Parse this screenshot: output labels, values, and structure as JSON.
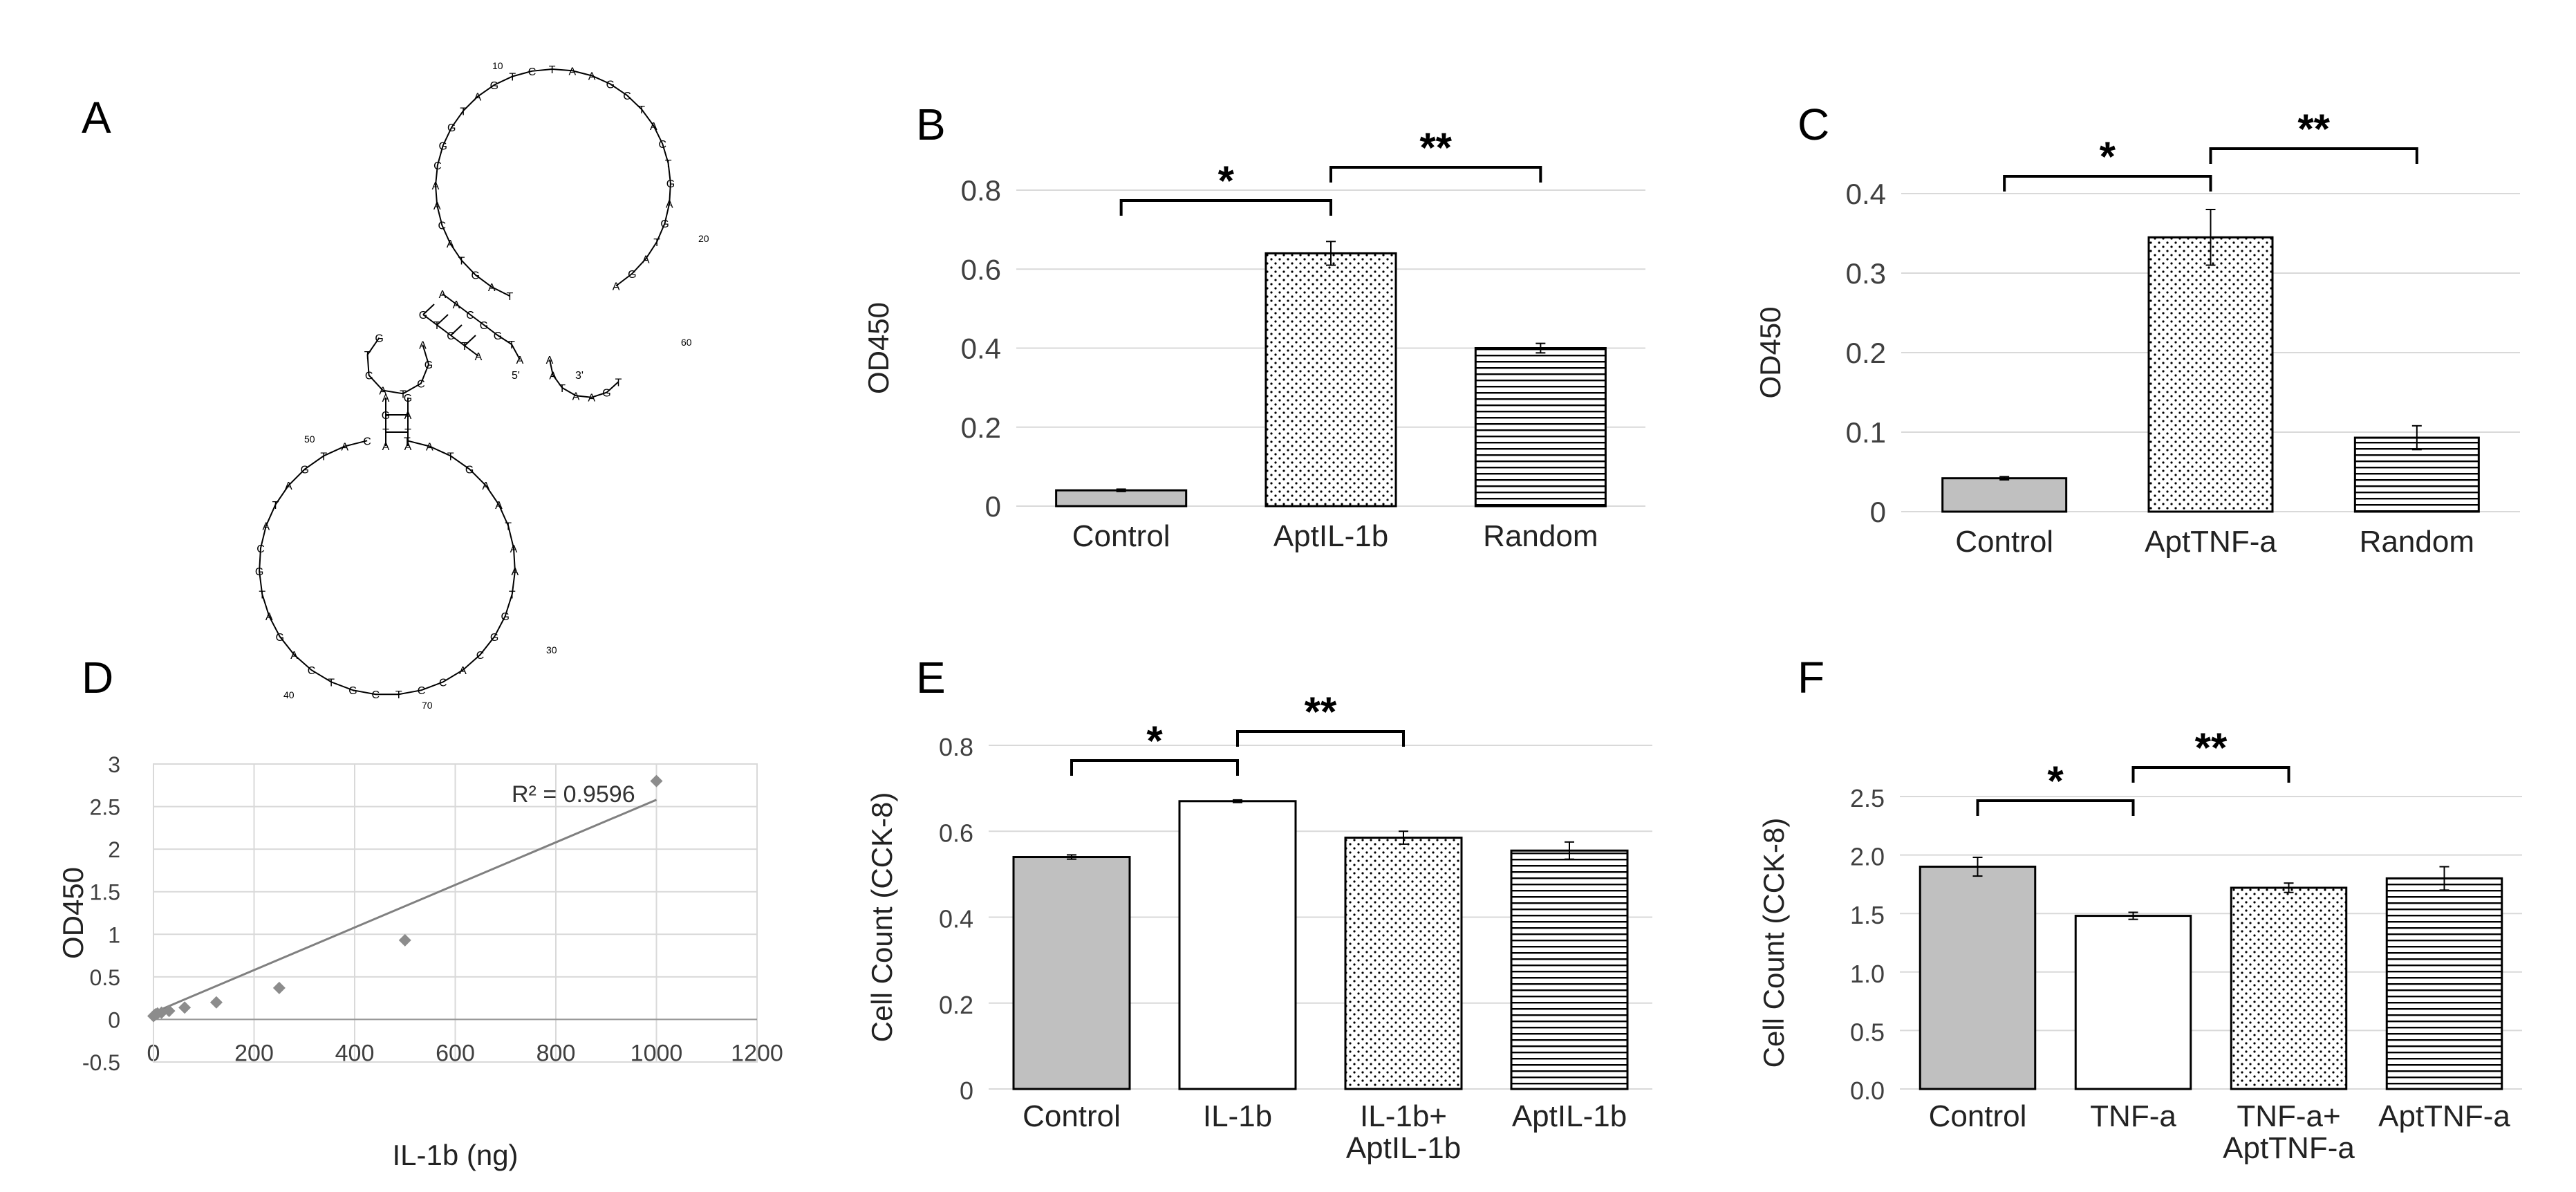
{
  "panel_labels": {
    "A": "A",
    "B": "B",
    "C": "C",
    "D": "D",
    "E": "E",
    "F": "F"
  },
  "colors": {
    "control_fill": "#c0c0c0",
    "bar_stroke": "#000000",
    "grid": "#d9d9d9",
    "axis_text": "#404040",
    "point": "#8c8c8c",
    "trend": "#808080"
  },
  "chart_data": [
    {
      "panel": "A",
      "type": "other",
      "description_kind": "aptamer secondary structure",
      "end_labels": [
        "5'",
        "3'"
      ],
      "position_labels": [
        "10",
        "20",
        "30",
        "40",
        "50",
        "60",
        "70"
      ],
      "nucleotides": [
        "T",
        "A",
        "G",
        "T",
        "A",
        "C",
        "A",
        "A",
        "C",
        "G",
        "G",
        "T",
        "A",
        "G",
        "T",
        "C",
        "T",
        "A",
        "A",
        "G",
        "C",
        "T",
        "A",
        "C",
        "T",
        "G",
        "A",
        "G",
        "T",
        "A",
        "G",
        "A",
        "T",
        "A",
        "T",
        "G",
        "A",
        "A",
        "T",
        "A",
        "A",
        "T",
        "G",
        "G",
        "C",
        "A",
        "C",
        "C",
        "T",
        "C",
        "G",
        "T",
        "C",
        "A",
        "G",
        "A",
        "T",
        "G",
        "C",
        "A"
      ]
    },
    {
      "panel": "B",
      "type": "bar",
      "ylabel": "OD450",
      "ylim": [
        0,
        0.8
      ],
      "yticks": [
        "0",
        "0.2",
        "0.4",
        "0.6",
        "0.8"
      ],
      "categories": [
        "Control",
        "AptIL-1b",
        "Random"
      ],
      "values": [
        0.04,
        0.64,
        0.4
      ],
      "errors": [
        0.003,
        0.03,
        0.012
      ],
      "patterns": [
        "solid",
        "dots",
        "hlines"
      ],
      "brackets": [
        {
          "from": 0,
          "to": 1,
          "label": "*"
        },
        {
          "from": 1,
          "to": 2,
          "label": "**"
        }
      ]
    },
    {
      "panel": "C",
      "type": "bar",
      "ylabel": "OD450",
      "ylim": [
        0,
        0.4
      ],
      "yticks": [
        "0",
        "0.1",
        "0.2",
        "0.3",
        "0.4"
      ],
      "categories": [
        "Control",
        "AptTNF-a",
        "Random"
      ],
      "values": [
        0.042,
        0.345,
        0.093
      ],
      "errors": [
        0.002,
        0.035,
        0.015
      ],
      "patterns": [
        "solid",
        "dots",
        "hlines"
      ],
      "brackets": [
        {
          "from": 0,
          "to": 1,
          "label": "*"
        },
        {
          "from": 1,
          "to": 2,
          "label": "**"
        }
      ]
    },
    {
      "panel": "D",
      "type": "scatter",
      "xlabel": "IL-1b (ng)",
      "ylabel": "OD450",
      "xlim": [
        0,
        1200
      ],
      "ylim": [
        -0.5,
        3
      ],
      "xticks": [
        "0",
        "200",
        "400",
        "600",
        "800",
        "1000",
        "1200"
      ],
      "yticks": [
        "-0.5",
        "0",
        "0.5",
        "1",
        "1.5",
        "2",
        "2.5",
        "3"
      ],
      "x": [
        0,
        2,
        4,
        8,
        16,
        31,
        62,
        125,
        250,
        500,
        1000
      ],
      "y": [
        0.04,
        0.05,
        0.06,
        0.07,
        0.08,
        0.1,
        0.14,
        0.2,
        0.37,
        0.93,
        2.8
      ],
      "trendline": {
        "slope": 0.0025,
        "intercept": 0.08
      },
      "annotation": "R² = 0.9596"
    },
    {
      "panel": "E",
      "type": "bar",
      "ylabel": "Cell Count (CCK-8)",
      "ylim": [
        0,
        0.8
      ],
      "yticks": [
        "0",
        "0.2",
        "0.4",
        "0.6",
        "0.8"
      ],
      "categories": [
        [
          "Control"
        ],
        [
          "IL-1b"
        ],
        [
          "IL-1b+",
          "AptIL-1b"
        ],
        [
          "AptIL-1b"
        ]
      ],
      "values": [
        0.54,
        0.67,
        0.585,
        0.555
      ],
      "errors": [
        0.005,
        0.003,
        0.015,
        0.02
      ],
      "patterns": [
        "solid",
        "white",
        "dots",
        "hlines"
      ],
      "brackets": [
        {
          "from": 0,
          "to": 1,
          "label": "*"
        },
        {
          "from": 1,
          "to": 2,
          "label": "**"
        }
      ]
    },
    {
      "panel": "F",
      "type": "bar",
      "ylabel": "Cell Count (CCK-8)",
      "ylim": [
        0,
        2.5
      ],
      "yticks": [
        "0.0",
        "0.5",
        "1.0",
        "1.5",
        "2.0",
        "2.5"
      ],
      "categories": [
        [
          "Control"
        ],
        [
          "TNF-a"
        ],
        [
          "TNF-a+",
          "AptTNF-a"
        ],
        [
          "AptTNF-a"
        ]
      ],
      "values": [
        1.9,
        1.48,
        1.72,
        1.8
      ],
      "errors": [
        0.08,
        0.03,
        0.04,
        0.1
      ],
      "patterns": [
        "solid",
        "white",
        "dots",
        "hlines"
      ],
      "brackets": [
        {
          "from": 0,
          "to": 1,
          "label": "*"
        },
        {
          "from": 1,
          "to": 2,
          "label": "**"
        }
      ]
    }
  ]
}
